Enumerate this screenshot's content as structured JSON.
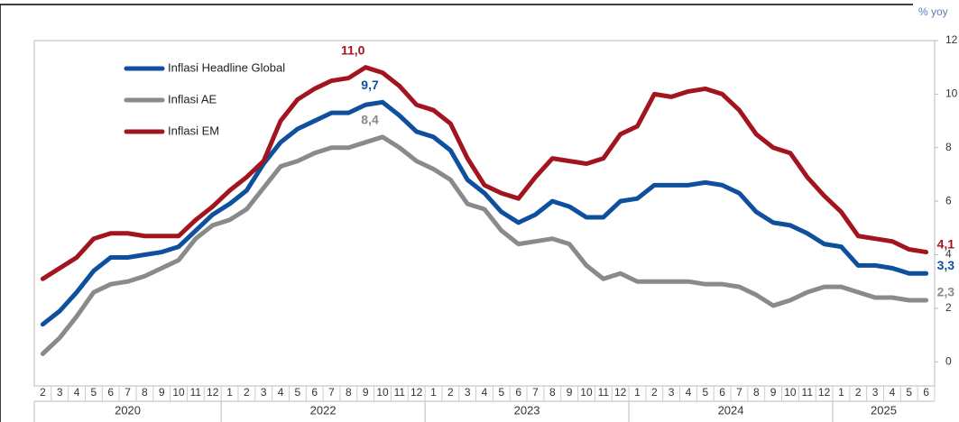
{
  "chart_data": {
    "type": "line",
    "unit_label": "% yoy",
    "categories": [
      "2",
      "3",
      "4",
      "5",
      "6",
      "7",
      "8",
      "9",
      "10",
      "11",
      "12",
      "1",
      "2",
      "3",
      "4",
      "5",
      "6",
      "7",
      "8",
      "9",
      "10",
      "11",
      "12",
      "1",
      "2",
      "3",
      "4",
      "5",
      "6",
      "7",
      "8",
      "9",
      "10",
      "11",
      "12",
      "1",
      "2",
      "3",
      "4",
      "5",
      "6",
      "7",
      "8",
      "9",
      "10",
      "11",
      "12",
      "1",
      "2",
      "3",
      "4",
      "5",
      "6"
    ],
    "year_groups": [
      "2020",
      "2022",
      "2023",
      "2024",
      "2025"
    ],
    "ylim": [
      -0.9,
      12
    ],
    "yticks": [
      0,
      2,
      4,
      6,
      8,
      10,
      12
    ],
    "grid": false,
    "legend": "top-left",
    "series": [
      {
        "name": "Inflasi Headline Global",
        "color": "#0e4f9e",
        "values": [
          1.4,
          1.9,
          2.6,
          3.4,
          3.9,
          3.9,
          4.0,
          4.1,
          4.3,
          4.9,
          5.5,
          5.9,
          6.4,
          7.4,
          8.2,
          8.7,
          9.0,
          9.3,
          9.3,
          9.6,
          9.7,
          9.2,
          8.6,
          8.4,
          7.9,
          6.8,
          6.3,
          5.6,
          5.2,
          5.5,
          6.0,
          5.8,
          5.4,
          5.4,
          6.0,
          6.1,
          6.6,
          6.6,
          6.6,
          6.7,
          6.6,
          6.3,
          5.6,
          5.2,
          5.1,
          4.8,
          4.4,
          4.3,
          3.6,
          3.6,
          3.5,
          3.3,
          3.3
        ],
        "value_labels": [
          null,
          null,
          null,
          null,
          null,
          null,
          null,
          null,
          null,
          null,
          null,
          null,
          null,
          null,
          null,
          null,
          null,
          null,
          null,
          null,
          "9,7",
          null,
          null,
          null,
          null,
          null,
          null,
          null,
          null,
          null,
          null,
          null,
          null,
          null,
          null,
          null,
          null,
          null,
          null,
          null,
          null,
          null,
          null,
          null,
          null,
          null,
          null,
          null,
          null,
          null,
          null,
          null,
          "3,3"
        ]
      },
      {
        "name": "Inflasi AE",
        "color": "#8a8a8a",
        "values": [
          0.3,
          0.9,
          1.7,
          2.6,
          2.9,
          3.0,
          3.2,
          3.5,
          3.8,
          4.6,
          5.1,
          5.3,
          5.7,
          6.5,
          7.3,
          7.5,
          7.8,
          8.0,
          8.0,
          8.2,
          8.4,
          8.0,
          7.5,
          7.2,
          6.8,
          5.9,
          5.7,
          4.9,
          4.4,
          4.5,
          4.6,
          4.4,
          3.6,
          3.1,
          3.3,
          3.0,
          3.0,
          3.0,
          3.0,
          2.9,
          2.9,
          2.8,
          2.5,
          2.1,
          2.3,
          2.6,
          2.8,
          2.8,
          2.6,
          2.4,
          2.4,
          2.3,
          2.3
        ],
        "value_labels": [
          null,
          null,
          null,
          null,
          null,
          null,
          null,
          null,
          null,
          null,
          null,
          null,
          null,
          null,
          null,
          null,
          null,
          null,
          null,
          null,
          "8,4",
          null,
          null,
          null,
          null,
          null,
          null,
          null,
          null,
          null,
          null,
          null,
          null,
          null,
          null,
          null,
          null,
          null,
          null,
          null,
          null,
          null,
          null,
          null,
          null,
          null,
          null,
          null,
          null,
          null,
          null,
          null,
          "2,3"
        ]
      },
      {
        "name": "Inflasi EM",
        "color": "#a3151e",
        "values": [
          3.1,
          3.5,
          3.9,
          4.6,
          4.8,
          4.8,
          4.7,
          4.7,
          4.7,
          5.3,
          5.8,
          6.4,
          6.9,
          7.5,
          9.0,
          9.8,
          10.2,
          10.5,
          10.6,
          11.0,
          10.8,
          10.3,
          9.6,
          9.4,
          8.9,
          7.6,
          6.6,
          6.3,
          6.1,
          6.9,
          7.6,
          7.5,
          7.4,
          7.6,
          8.5,
          8.8,
          10.0,
          9.9,
          10.1,
          10.2,
          10.0,
          9.4,
          8.5,
          8.0,
          7.8,
          6.9,
          6.2,
          5.6,
          4.7,
          4.6,
          4.5,
          4.2,
          4.1
        ],
        "value_labels": [
          null,
          null,
          null,
          null,
          null,
          null,
          null,
          null,
          null,
          null,
          null,
          null,
          null,
          null,
          null,
          null,
          null,
          null,
          null,
          "11,0",
          null,
          null,
          null,
          null,
          null,
          null,
          null,
          null,
          null,
          null,
          null,
          null,
          null,
          null,
          null,
          null,
          null,
          null,
          null,
          null,
          null,
          null,
          null,
          null,
          null,
          null,
          null,
          null,
          null,
          null,
          null,
          null,
          "4,1"
        ]
      }
    ]
  }
}
